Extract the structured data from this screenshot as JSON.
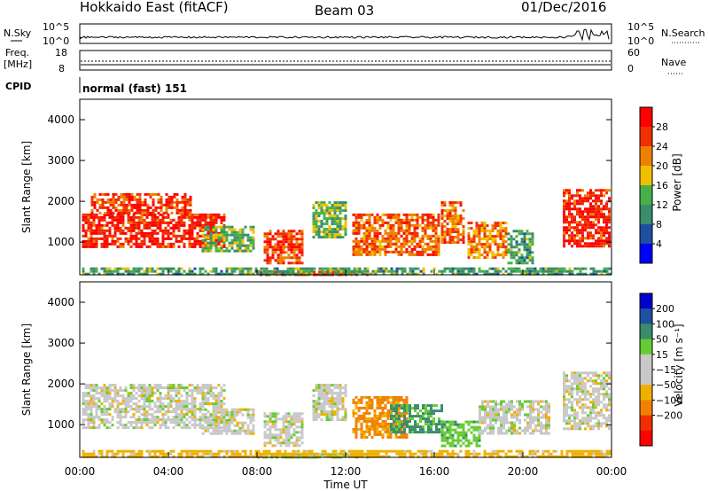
{
  "header": {
    "title": "Hokkaido East (fitACF)",
    "beam": "Beam 03",
    "date": "01/Dec/2016"
  },
  "top_panels": {
    "nsky_label": "N.Sky",
    "nsky_ticks": [
      "10^5",
      "10^0"
    ],
    "nsearch_label": "N.Search",
    "nsearch_ticks": [
      "10^5",
      "10^0"
    ],
    "freq_label_1": "Freq.",
    "freq_label_2": "[MHz]",
    "freq_ticks": [
      "18",
      "8"
    ],
    "nave_label": "Nave",
    "nave_ticks": [
      "60",
      "0"
    ],
    "cpid_label": "CPID",
    "cpid_text": "normal (fast) 151"
  },
  "colors": {
    "power_scale": [
      "#0000ff",
      "#1e4fa0",
      "#3a8c6a",
      "#47b04a",
      "#f0c000",
      "#f08000",
      "#f03000",
      "#ff0000"
    ],
    "velocity_scale": [
      "#ff0000",
      "#f03000",
      "#f08000",
      "#f0b000",
      "#c8c8c8",
      "#c8c8c8",
      "#66cc33",
      "#3a8c6a",
      "#2050a0",
      "#0000c8"
    ],
    "ground_scatter": "#aaaaaa"
  },
  "chart_data": [
    {
      "type": "heatmap",
      "panel": "power",
      "ylabel": "Slant Range [km]",
      "yticks": [
        "4000",
        "3000",
        "2000",
        "1000"
      ],
      "ylim": [
        200,
        4500
      ],
      "xlim": [
        0,
        24
      ],
      "colorbar_label": "Power [dB]",
      "colorbar_ticks": [
        "28",
        "24",
        "20",
        "16",
        "12",
        "8",
        "4"
      ],
      "colorbar_range": [
        0,
        32
      ],
      "regions": [
        {
          "t0": 0.1,
          "t1": 6.5,
          "r0": 900,
          "r1": 1700,
          "level": 28
        },
        {
          "t0": 0.5,
          "t1": 5.0,
          "r0": 1700,
          "r1": 2200,
          "level": 26
        },
        {
          "t0": 5.5,
          "t1": 7.8,
          "r0": 800,
          "r1": 1400,
          "level": 14
        },
        {
          "t0": 8.3,
          "t1": 10.0,
          "r0": 500,
          "r1": 1300,
          "level": 26
        },
        {
          "t0": 10.5,
          "t1": 12.0,
          "r0": 1100,
          "r1": 2000,
          "level": 14
        },
        {
          "t0": 12.3,
          "t1": 16.2,
          "r0": 700,
          "r1": 1700,
          "level": 24
        },
        {
          "t0": 16.3,
          "t1": 17.3,
          "r0": 1000,
          "r1": 2000,
          "level": 24
        },
        {
          "t0": 17.5,
          "t1": 19.2,
          "r0": 600,
          "r1": 1500,
          "level": 22
        },
        {
          "t0": 19.3,
          "t1": 20.5,
          "r0": 500,
          "r1": 1300,
          "level": 12
        },
        {
          "t0": 21.8,
          "t1": 23.9,
          "r0": 900,
          "r1": 2300,
          "level": 28
        },
        {
          "t0": 8.0,
          "t1": 13.0,
          "r0": 220,
          "r1": 300,
          "level": 28
        },
        {
          "t0": 0.1,
          "t1": 23.9,
          "r0": 200,
          "r1": 380,
          "level": 12
        }
      ]
    },
    {
      "type": "heatmap",
      "panel": "velocity",
      "ylabel": "Slant Range [km]",
      "yticks": [
        "4000",
        "3000",
        "2000",
        "1000"
      ],
      "ylim": [
        200,
        4500
      ],
      "xlim": [
        0,
        24
      ],
      "xticks": [
        "00:00",
        "04:00",
        "08:00",
        "12:00",
        "16:00",
        "20:00",
        "00:00"
      ],
      "xlabel": "Time UT",
      "colorbar_label": "Velocity [m s⁻¹]",
      "colorbar_ticks": [
        "200",
        "100",
        "50",
        "15",
        "−15",
        "−50",
        "−100",
        "−200"
      ],
      "colorbar_range": [
        -250,
        250
      ],
      "regions": [
        {
          "t0": 0.1,
          "t1": 6.5,
          "r0": 900,
          "r1": 2000,
          "level": 0
        },
        {
          "t0": 5.5,
          "t1": 7.8,
          "r0": 800,
          "r1": 1400,
          "level": 0
        },
        {
          "t0": 8.3,
          "t1": 10.0,
          "r0": 500,
          "r1": 1300,
          "level": 0
        },
        {
          "t0": 10.5,
          "t1": 12.0,
          "r0": 1100,
          "r1": 2000,
          "level": 0
        },
        {
          "t0": 12.3,
          "t1": 14.8,
          "r0": 700,
          "r1": 1700,
          "level": -60
        },
        {
          "t0": 14.0,
          "t1": 16.3,
          "r0": 800,
          "r1": 1500,
          "level": 60
        },
        {
          "t0": 16.3,
          "t1": 18.0,
          "r0": 500,
          "r1": 1100,
          "level": 35
        },
        {
          "t0": 18.0,
          "t1": 21.2,
          "r0": 800,
          "r1": 1600,
          "level": 0
        },
        {
          "t0": 21.8,
          "t1": 23.9,
          "r0": 900,
          "r1": 2300,
          "level": 0
        },
        {
          "t0": 8.0,
          "t1": 13.0,
          "r0": 220,
          "r1": 300,
          "level": 30
        },
        {
          "t0": 0.1,
          "t1": 23.9,
          "r0": 200,
          "r1": 380,
          "level": -30
        }
      ]
    }
  ]
}
